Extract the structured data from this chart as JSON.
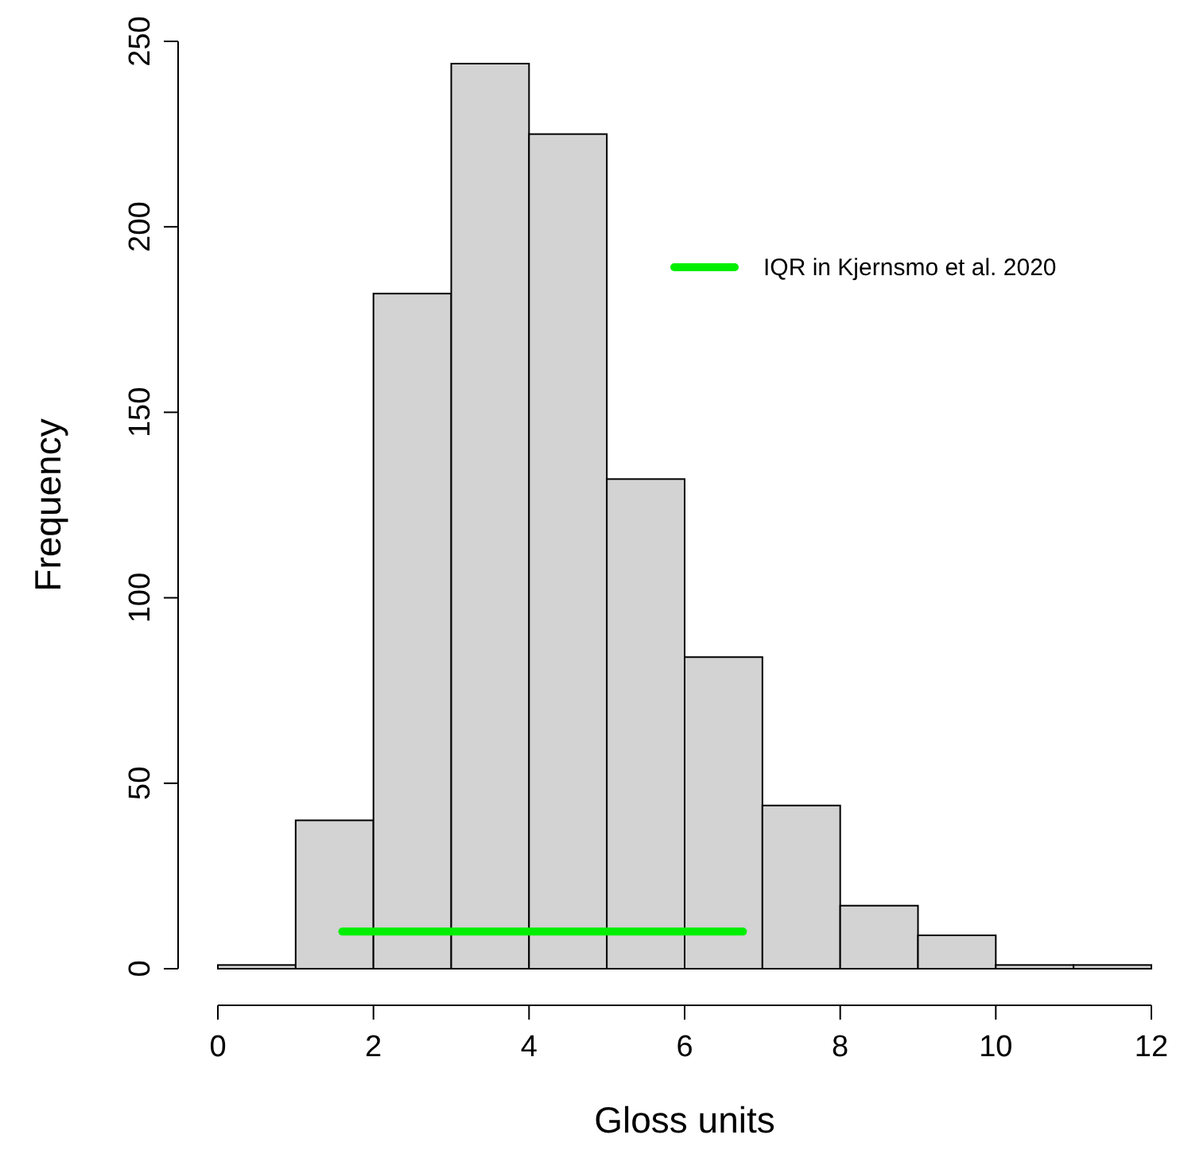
{
  "chart_data": {
    "type": "histogram",
    "xlabel": "Gloss units",
    "ylabel": "Frequency",
    "bins": [
      0,
      1,
      2,
      3,
      4,
      5,
      6,
      7,
      8,
      9,
      10,
      11,
      12
    ],
    "values": [
      1,
      40,
      182,
      244,
      225,
      132,
      84,
      44,
      17,
      9,
      1,
      1
    ],
    "color": "#d3d3d3",
    "series": [
      {
        "type": "line",
        "name": "IQR in Kjernsmo et al. 2020",
        "color": "#00ee00",
        "x": [
          1.6,
          6.75
        ],
        "values": [
          10,
          10
        ]
      }
    ],
    "xlim": [
      0,
      12
    ],
    "xticks": [
      0,
      2,
      4,
      6,
      8,
      10,
      12
    ],
    "ylim": [
      0,
      250
    ],
    "yticks": [
      0,
      50,
      100,
      150,
      200,
      250
    ],
    "grid": false,
    "legend": "top right"
  }
}
